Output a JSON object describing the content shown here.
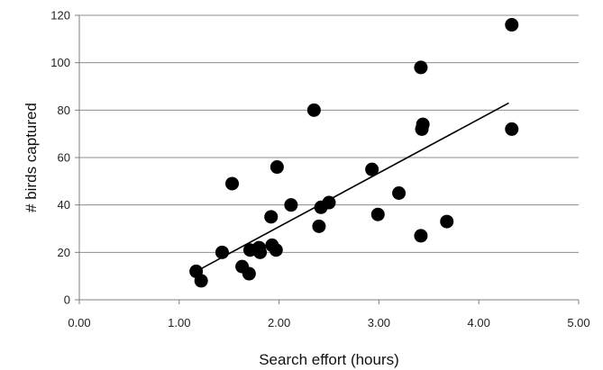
{
  "chart_data": {
    "type": "scatter",
    "title": "",
    "xlabel": "Search effort (hours)",
    "ylabel": "# birds captured",
    "xlim": [
      0,
      5
    ],
    "ylim": [
      0,
      120
    ],
    "x_ticks": [
      "0.00",
      "1.00",
      "2.00",
      "3.00",
      "4.00",
      "5.00"
    ],
    "y_ticks": [
      "0",
      "20",
      "40",
      "60",
      "80",
      "100",
      "120"
    ],
    "grid": "horizontal",
    "legend": "none",
    "marker_color": "#000000",
    "points": [
      {
        "x": 1.17,
        "y": 12
      },
      {
        "x": 1.22,
        "y": 8
      },
      {
        "x": 1.43,
        "y": 20
      },
      {
        "x": 1.53,
        "y": 49
      },
      {
        "x": 1.63,
        "y": 14
      },
      {
        "x": 1.7,
        "y": 11
      },
      {
        "x": 1.71,
        "y": 21
      },
      {
        "x": 1.8,
        "y": 22
      },
      {
        "x": 1.81,
        "y": 20
      },
      {
        "x": 1.92,
        "y": 35
      },
      {
        "x": 1.93,
        "y": 23
      },
      {
        "x": 1.97,
        "y": 21
      },
      {
        "x": 1.98,
        "y": 56
      },
      {
        "x": 2.12,
        "y": 40
      },
      {
        "x": 2.35,
        "y": 80
      },
      {
        "x": 2.4,
        "y": 31
      },
      {
        "x": 2.42,
        "y": 39
      },
      {
        "x": 2.5,
        "y": 41
      },
      {
        "x": 2.93,
        "y": 55
      },
      {
        "x": 2.99,
        "y": 36
      },
      {
        "x": 3.2,
        "y": 45
      },
      {
        "x": 3.42,
        "y": 98
      },
      {
        "x": 3.42,
        "y": 27
      },
      {
        "x": 3.43,
        "y": 72
      },
      {
        "x": 3.44,
        "y": 74
      },
      {
        "x": 3.68,
        "y": 33
      },
      {
        "x": 4.33,
        "y": 116
      },
      {
        "x": 4.33,
        "y": 72
      }
    ],
    "trendline": {
      "type": "linear",
      "x": [
        1.17,
        4.3
      ],
      "y": [
        12,
        83
      ],
      "color": "#000000"
    }
  }
}
